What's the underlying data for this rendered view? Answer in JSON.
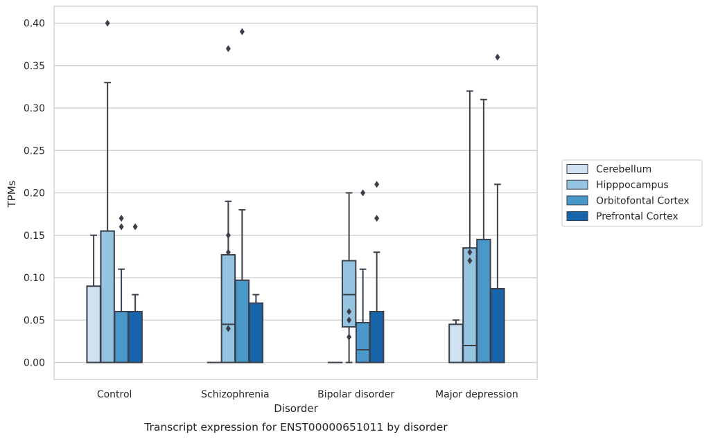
{
  "chart_data": {
    "type": "boxplot",
    "xlabel": "Disorder",
    "ylabel": "TPMs",
    "caption": "Transcript expression for ENST00000651011 by disorder",
    "ylim": [
      -0.02,
      0.42
    ],
    "yticks": [
      0.0,
      0.05,
      0.1,
      0.15,
      0.2,
      0.25,
      0.3,
      0.35,
      0.4
    ],
    "ytick_labels": [
      "0.00",
      "0.05",
      "0.10",
      "0.15",
      "0.20",
      "0.25",
      "0.30",
      "0.35",
      "0.40"
    ],
    "grid": "horizontal",
    "legend_position": "right",
    "categories": [
      "Control",
      "Schizophrenia",
      "Bipolar disorder",
      "Major depression"
    ],
    "series": [
      {
        "name": "Cerebellum",
        "color": "#d0e1f2",
        "boxes": [
          {
            "whislo": 0.0,
            "q1": 0.0,
            "med": 0.0,
            "q3": 0.09,
            "whishi": 0.15,
            "fliers": []
          },
          {
            "whislo": 0.0,
            "q1": 0.0,
            "med": 0.0,
            "q3": 0.0,
            "whishi": 0.0,
            "fliers": []
          },
          {
            "whislo": 0.0,
            "q1": 0.0,
            "med": 0.0,
            "q3": 0.0,
            "whishi": 0.0,
            "fliers": []
          },
          {
            "whislo": 0.0,
            "q1": 0.0,
            "med": 0.0,
            "q3": 0.045,
            "whishi": 0.05,
            "fliers": []
          }
        ]
      },
      {
        "name": "Hipppocampus",
        "color": "#94c4df",
        "boxes": [
          {
            "whislo": 0.0,
            "q1": 0.0,
            "med": 0.0,
            "q3": 0.155,
            "whishi": 0.33,
            "fliers": [
              0.4
            ]
          },
          {
            "whislo": 0.0,
            "q1": 0.0,
            "med": 0.045,
            "q3": 0.127,
            "whishi": 0.19,
            "fliers": [
              0.15,
              0.13,
              0.04,
              0.37
            ]
          },
          {
            "whislo": 0.0,
            "q1": 0.042,
            "med": 0.08,
            "q3": 0.12,
            "whishi": 0.2,
            "fliers": [
              0.06,
              0.05,
              0.03
            ]
          },
          {
            "whislo": 0.0,
            "q1": 0.0,
            "med": 0.02,
            "q3": 0.135,
            "whishi": 0.32,
            "fliers": [
              0.13,
              0.12
            ]
          }
        ]
      },
      {
        "name": "Orbitofontal Cortex",
        "color": "#4a98c9",
        "boxes": [
          {
            "whislo": 0.0,
            "q1": 0.0,
            "med": 0.0,
            "q3": 0.06,
            "whishi": 0.11,
            "fliers": [
              0.17,
              0.16
            ]
          },
          {
            "whislo": 0.0,
            "q1": 0.0,
            "med": 0.0,
            "q3": 0.097,
            "whishi": 0.18,
            "fliers": [
              0.39
            ]
          },
          {
            "whislo": 0.0,
            "q1": 0.0,
            "med": 0.015,
            "q3": 0.047,
            "whishi": 0.11,
            "fliers": [
              0.2
            ]
          },
          {
            "whislo": 0.0,
            "q1": 0.0,
            "med": 0.0,
            "q3": 0.145,
            "whishi": 0.31,
            "fliers": []
          }
        ]
      },
      {
        "name": "Prefrontal Cortex",
        "color": "#1764ab",
        "boxes": [
          {
            "whislo": 0.0,
            "q1": 0.0,
            "med": 0.0,
            "q3": 0.06,
            "whishi": 0.08,
            "fliers": [
              0.16
            ]
          },
          {
            "whislo": 0.0,
            "q1": 0.0,
            "med": 0.0,
            "q3": 0.07,
            "whishi": 0.08,
            "fliers": []
          },
          {
            "whislo": 0.0,
            "q1": 0.0,
            "med": 0.0,
            "q3": 0.06,
            "whishi": 0.13,
            "fliers": [
              0.21,
              0.17
            ]
          },
          {
            "whislo": 0.0,
            "q1": 0.0,
            "med": 0.0,
            "q3": 0.087,
            "whishi": 0.21,
            "fliers": [
              0.36
            ]
          }
        ]
      }
    ]
  }
}
